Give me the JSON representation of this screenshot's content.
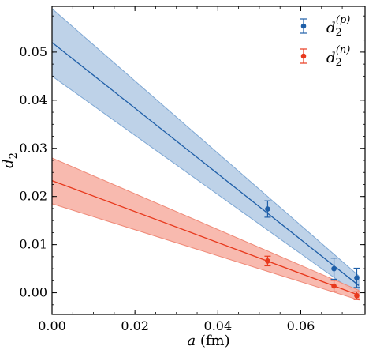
{
  "chart_data": {
    "type": "line",
    "xlabel": "a (fm)",
    "ylabel": "d2",
    "xlim": [
      0.0,
      0.0755
    ],
    "ylim": [
      -0.0045,
      0.0595
    ],
    "x_ticks": [
      0.0,
      0.02,
      0.04,
      0.06
    ],
    "x_tick_labels": [
      "0.00",
      "0.02",
      "0.04",
      "0.06"
    ],
    "y_ticks": [
      0.0,
      0.01,
      0.02,
      0.03,
      0.04,
      0.05
    ],
    "y_tick_labels": [
      "0.00",
      "0.01",
      "0.02",
      "0.03",
      "0.04",
      "0.05"
    ],
    "legend_position": "top-right",
    "series": [
      {
        "name": "d2(p)",
        "legend_base": "d",
        "legend_sub": "2",
        "legend_sup": "(p)",
        "color": "#1f5fa8",
        "band_color": "#b7cde6",
        "band_edge": "#7fa8d4",
        "fit": {
          "x": [
            0.0,
            0.074
          ],
          "y": [
            0.052,
            0.0015
          ],
          "lower": [
            0.045,
            -0.0005
          ],
          "upper": [
            0.059,
            0.0035
          ]
        },
        "points": [
          {
            "x": 0.052,
            "y": 0.0174,
            "err": 0.0017
          },
          {
            "x": 0.068,
            "y": 0.005,
            "err": 0.0022
          },
          {
            "x": 0.0735,
            "y": 0.0031,
            "err": 0.002
          }
        ]
      },
      {
        "name": "d2(n)",
        "legend_base": "d",
        "legend_sub": "2",
        "legend_sup": "(n)",
        "color": "#e8391d",
        "band_color": "#f7b3a6",
        "band_edge": "#ef8a78",
        "fit": {
          "x": [
            0.0,
            0.074
          ],
          "y": [
            0.0233,
            -0.0005
          ],
          "lower": [
            0.0185,
            -0.0015
          ],
          "upper": [
            0.028,
            0.0005
          ]
        },
        "points": [
          {
            "x": 0.052,
            "y": 0.0066,
            "err": 0.001
          },
          {
            "x": 0.068,
            "y": 0.0014,
            "err": 0.0012
          },
          {
            "x": 0.0735,
            "y": -0.0006,
            "err": 0.0008
          }
        ]
      }
    ]
  }
}
